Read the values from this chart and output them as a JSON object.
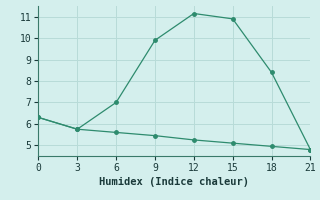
{
  "line1_x": [
    0,
    3,
    6,
    9,
    12,
    15,
    18,
    21
  ],
  "line1_y": [
    6.3,
    5.75,
    7.0,
    9.9,
    11.15,
    10.9,
    8.4,
    4.8
  ],
  "line2_x": [
    0,
    3,
    6,
    9,
    12,
    15,
    18,
    21
  ],
  "line2_y": [
    6.3,
    5.75,
    5.6,
    5.45,
    5.25,
    5.1,
    4.95,
    4.8
  ],
  "color": "#2e8b6e",
  "bg_color": "#d4efed",
  "grid_color": "#b8dbd8",
  "xlabel": "Humidex (Indice chaleur)",
  "xlim": [
    0,
    21
  ],
  "ylim": [
    4.5,
    11.5
  ],
  "xticks": [
    0,
    3,
    6,
    9,
    12,
    15,
    18,
    21
  ],
  "yticks": [
    5,
    6,
    7,
    8,
    9,
    10,
    11
  ],
  "marker": "o",
  "markersize": 2.5,
  "linewidth": 0.9,
  "xlabel_fontsize": 7.5,
  "tick_fontsize": 7
}
